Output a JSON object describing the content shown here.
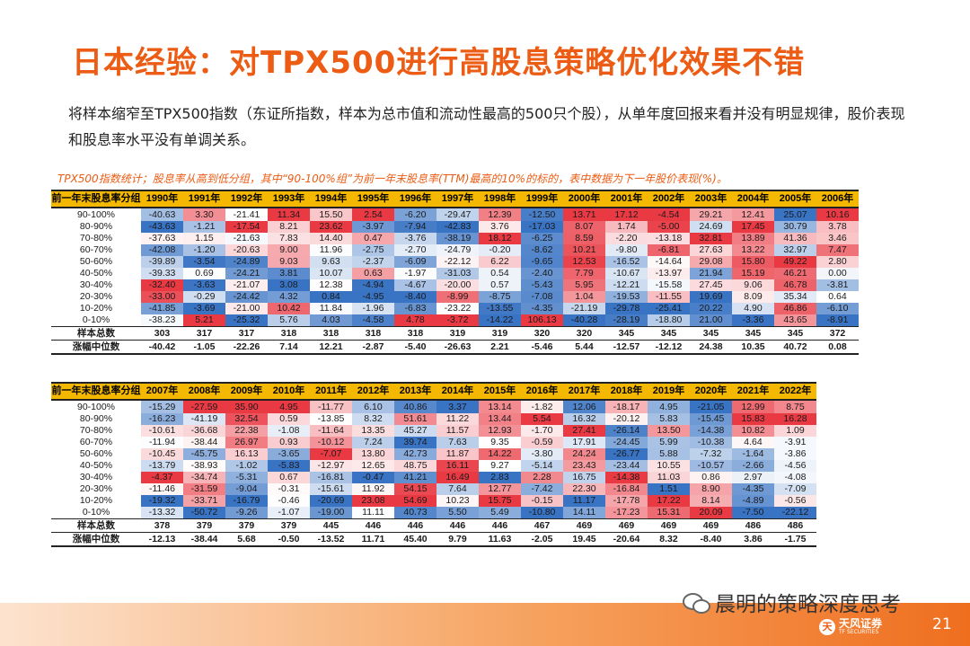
{
  "title": "日本经验：对TPX500进行高股息策略优化效果不错",
  "intro": "将样本缩窄至TPX500指数（东证所指数，样本为总市值和流动性最高的500只个股），从单年度回报来看并没有明显规律，股价表现和股息率水平没有单调关系。",
  "caption": "TPX500指数统计；股息率从高到低分组，其中“90-100%组”为前一年末股息率(TTM)最高的10%的标的，表中数据为下一年股价表现(%)。",
  "colors": {
    "accent": "#ec5c14",
    "header": "#f5b800",
    "pos": "#e8303a",
    "neg": "#2f6cc0"
  },
  "tables": [
    {
      "header_label": "前一年末股息率分组",
      "years": [
        "1990年",
        "1991年",
        "1992年",
        "1993年",
        "1994年",
        "1995年",
        "1996年",
        "1997年",
        "1998年",
        "1999年",
        "2000年",
        "2001年",
        "2002年",
        "2003年",
        "2004年",
        "2005年",
        "2006年"
      ],
      "rows": [
        {
          "group": "90-100%",
          "values": [
            -40.63,
            3.3,
            -21.41,
            11.34,
            15.5,
            2.54,
            -6.2,
            -29.47,
            12.39,
            -12.5,
            13.71,
            17.12,
            -4.54,
            29.21,
            12.41,
            25.07,
            10.16
          ]
        },
        {
          "group": "80-90%",
          "values": [
            -43.63,
            -1.21,
            -17.54,
            8.21,
            23.62,
            -3.97,
            -7.94,
            -42.83,
            3.76,
            -17.03,
            8.07,
            1.74,
            -5.0,
            24.69,
            17.45,
            30.79,
            3.78
          ]
        },
        {
          "group": "70-80%",
          "values": [
            -37.63,
            1.15,
            -21.63,
            7.83,
            14.4,
            0.47,
            -3.76,
            -38.19,
            18.12,
            -6.25,
            8.59,
            -2.2,
            -13.18,
            32.81,
            13.89,
            41.36,
            3.46
          ]
        },
        {
          "group": "60-70%",
          "values": [
            -42.08,
            -1.2,
            -20.63,
            9.0,
            11.96,
            -2.75,
            -2.7,
            -24.79,
            -0.2,
            -8.62,
            10.21,
            -9.8,
            -6.81,
            27.63,
            13.22,
            32.97,
            7.47
          ]
        },
        {
          "group": "50-60%",
          "values": [
            -39.89,
            -3.54,
            -24.89,
            9.03,
            9.63,
            -2.37,
            -6.09,
            -22.12,
            6.22,
            -9.65,
            12.53,
            -16.52,
            -14.64,
            29.08,
            15.8,
            49.22,
            2.8
          ]
        },
        {
          "group": "40-50%",
          "values": [
            -39.33,
            0.69,
            -24.21,
            3.81,
            10.07,
            0.63,
            -1.97,
            -31.03,
            0.54,
            -2.4,
            7.79,
            -10.67,
            -13.97,
            21.94,
            15.19,
            46.21,
            0.0
          ]
        },
        {
          "group": "30-40%",
          "values": [
            -32.4,
            -3.63,
            -21.07,
            3.08,
            12.38,
            -4.94,
            -4.67,
            -20.0,
            0.57,
            -5.43,
            5.95,
            -12.21,
            -15.58,
            27.45,
            9.06,
            46.78,
            -3.81
          ]
        },
        {
          "group": "20-30%",
          "values": [
            -33.0,
            -0.29,
            -24.42,
            4.32,
            0.84,
            -4.95,
            -8.4,
            -8.99,
            -8.75,
            -7.08,
            1.04,
            -19.53,
            -11.55,
            19.69,
            8.09,
            35.34,
            0.64
          ]
        },
        {
          "group": "10-20%",
          "values": [
            -41.85,
            -3.69,
            -21.0,
            10.42,
            11.84,
            -1.96,
            -6.83,
            -23.22,
            -13.55,
            -4.35,
            -21.19,
            -29.78,
            -25.41,
            20.22,
            4.9,
            46.86,
            -6.1
          ]
        },
        {
          "group": "0-10%",
          "values": [
            -38.23,
            5.21,
            -25.32,
            5.76,
            4.03,
            -4.58,
            4.78,
            -3.72,
            -14.22,
            106.13,
            -40.28,
            -28.19,
            -18.8,
            21.0,
            -3.36,
            43.65,
            -8.91
          ]
        }
      ],
      "sample_label": "样本总数",
      "sample": [
        303,
        317,
        317,
        318,
        318,
        318,
        318,
        319,
        319,
        320,
        320,
        345,
        345,
        345,
        345,
        345,
        372
      ],
      "median_label": "涨幅中位数",
      "median": [
        -40.42,
        -1.05,
        -22.26,
        7.14,
        12.21,
        -2.87,
        -5.4,
        -26.63,
        2.21,
        -5.46,
        5.44,
        -12.57,
        -12.12,
        24.38,
        10.35,
        40.72,
        0.08
      ]
    },
    {
      "header_label": "前一年末股息率分组",
      "years": [
        "2007年",
        "2008年",
        "2009年",
        "2010年",
        "2011年",
        "2012年",
        "2013年",
        "2014年",
        "2015年",
        "2016年",
        "2017年",
        "2018年",
        "2019年",
        "2020年",
        "2021年",
        "2022年"
      ],
      "rows": [
        {
          "group": "90-100%",
          "values": [
            -15.29,
            -27.59,
            35.9,
            4.95,
            -11.77,
            6.1,
            40.86,
            3.37,
            13.14,
            -1.82,
            12.06,
            -18.17,
            4.95,
            -21.05,
            12.99,
            8.75
          ]
        },
        {
          "group": "80-90%",
          "values": [
            -16.23,
            -41.19,
            32.54,
            0.59,
            -13.85,
            8.32,
            51.61,
            11.22,
            13.44,
            5.54,
            16.32,
            -20.12,
            5.83,
            -15.45,
            15.83,
            16.28
          ]
        },
        {
          "group": "70-80%",
          "values": [
            -10.61,
            -36.68,
            22.38,
            -1.08,
            -11.64,
            13.35,
            45.27,
            11.57,
            12.93,
            -1.7,
            27.41,
            -26.14,
            13.5,
            -14.38,
            10.82,
            1.09
          ]
        },
        {
          "group": "60-70%",
          "values": [
            -11.94,
            -38.44,
            26.97,
            0.93,
            -10.12,
            7.24,
            39.74,
            7.63,
            9.35,
            -0.59,
            17.91,
            -24.45,
            5.99,
            -10.38,
            4.64,
            -3.91
          ]
        },
        {
          "group": "50-60%",
          "values": [
            -10.45,
            -45.75,
            16.13,
            -3.65,
            -7.07,
            13.8,
            42.73,
            11.87,
            14.22,
            -3.8,
            24.24,
            -26.77,
            5.88,
            -7.32,
            -1.64,
            -3.86
          ]
        },
        {
          "group": "40-50%",
          "values": [
            -13.79,
            -38.93,
            -1.02,
            -5.83,
            -12.97,
            12.65,
            48.75,
            16.11,
            9.27,
            -5.14,
            23.43,
            -23.44,
            10.55,
            -10.57,
            -2.66,
            -4.56
          ]
        },
        {
          "group": "30-40%",
          "values": [
            -4.37,
            -34.74,
            -5.31,
            0.67,
            -16.81,
            -0.47,
            41.21,
            16.49,
            2.83,
            2.28,
            16.75,
            -14.38,
            11.03,
            0.86,
            2.97,
            -4.08
          ]
        },
        {
          "group": "20-30%",
          "values": [
            -11.46,
            -31.59,
            -9.04,
            -0.31,
            -15.61,
            11.92,
            54.15,
            7.64,
            12.77,
            -7.42,
            22.3,
            -16.84,
            1.51,
            8.9,
            -4.35,
            -7.09
          ]
        },
        {
          "group": "10-20%",
          "values": [
            -19.32,
            -33.71,
            -16.79,
            -0.46,
            -20.69,
            23.08,
            54.69,
            10.23,
            15.75,
            -0.15,
            11.17,
            -17.78,
            17.22,
            8.14,
            -4.89,
            -0.56
          ]
        },
        {
          "group": "0-10%",
          "values": [
            -13.32,
            -50.72,
            -9.26,
            -1.07,
            -19.0,
            11.11,
            40.73,
            5.5,
            5.49,
            -10.8,
            14.11,
            -17.23,
            15.31,
            20.09,
            -7.5,
            -22.12
          ]
        }
      ],
      "sample_label": "样本总数",
      "sample": [
        378,
        379,
        379,
        379,
        445,
        446,
        446,
        446,
        446,
        467,
        469,
        469,
        469,
        469,
        486,
        486
      ],
      "median_label": "涨幅中位数",
      "median": [
        -12.13,
        -38.44,
        5.68,
        -0.5,
        -13.52,
        11.71,
        45.4,
        9.79,
        11.63,
        -2.05,
        19.45,
        -20.64,
        8.32,
        -8.4,
        3.86,
        -1.75
      ]
    }
  ],
  "footer": {
    "wechat_label": "晨明的策略深度思考",
    "wechat_icon": "wechat-icon",
    "logo_mark": "天",
    "logo_text": "天风证券",
    "logo_sub": "TF SECURITIES",
    "page_number": "21"
  }
}
